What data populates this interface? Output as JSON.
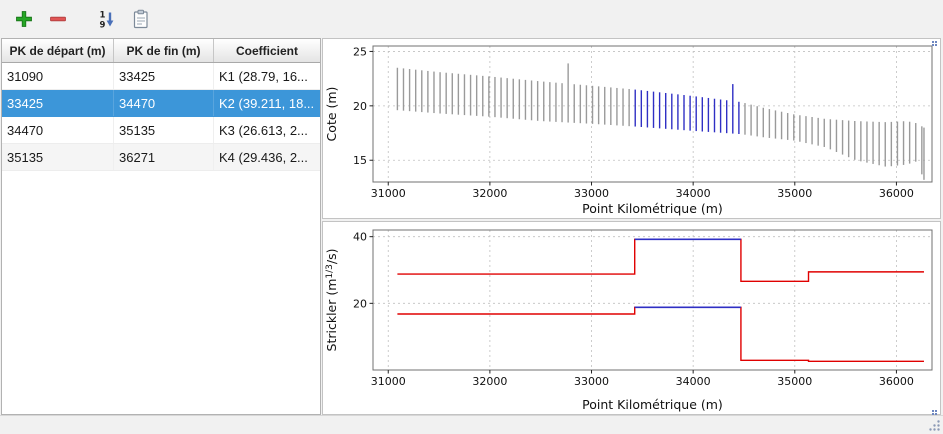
{
  "toolbar": {
    "buttons": [
      {
        "id": "add",
        "icon": "plus-icon"
      },
      {
        "id": "remove",
        "icon": "minus-icon"
      },
      {
        "id": "sort",
        "icon": "sort-numeric-icon",
        "digit_top": "1",
        "digit_bottom": "9"
      },
      {
        "id": "paste",
        "icon": "clipboard-icon"
      }
    ]
  },
  "table": {
    "columns": [
      "PK de départ (m)",
      "PK de fin (m)",
      "Coefficient"
    ],
    "rows": [
      {
        "pk_start": "31090",
        "pk_end": "33425",
        "coefficient": "K1 (28.79, 16...",
        "selected": false
      },
      {
        "pk_start": "33425",
        "pk_end": "34470",
        "coefficient": "K2 (39.211, 18...",
        "selected": true
      },
      {
        "pk_start": "34470",
        "pk_end": "35135",
        "coefficient": "K3 (26.613, 2...",
        "selected": false
      },
      {
        "pk_start": "35135",
        "pk_end": "36271",
        "coefficient": "K4 (29.436, 2...",
        "selected": false
      }
    ],
    "selected_color": "#3c96d9"
  },
  "chart_data": [
    {
      "type": "bar",
      "title": "",
      "xlabel": "Point Kilométrique (m)",
      "ylabel": "Cote (m)",
      "xlim": [
        30850,
        36350
      ],
      "ylim": [
        13,
        25.5
      ],
      "xticks": [
        31000,
        32000,
        33000,
        34000,
        35000,
        36000
      ],
      "yticks": [
        15,
        20,
        25
      ],
      "grid": true,
      "x_start": 31090,
      "x_end": 36271,
      "bar_spacing": 60,
      "highlight_range": [
        33425,
        34470
      ],
      "colors": {
        "bar": "#9a9a9a",
        "highlight": "#2f2fc4"
      },
      "sections": [
        [
          31090,
          19.6,
          23.5
        ],
        [
          31500,
          19.3,
          23.1
        ],
        [
          32000,
          19.0,
          22.7
        ],
        [
          32500,
          18.6,
          22.25
        ],
        [
          33000,
          18.35,
          21.85
        ],
        [
          33425,
          18.1,
          21.5
        ],
        [
          34000,
          17.7,
          20.9
        ],
        [
          34470,
          17.4,
          20.35
        ],
        [
          34700,
          17.1,
          19.8
        ],
        [
          35000,
          16.8,
          19.2
        ],
        [
          35300,
          16.2,
          18.8
        ],
        [
          35600,
          15.0,
          18.6
        ],
        [
          35900,
          14.4,
          18.5
        ],
        [
          36100,
          14.6,
          18.6
        ],
        [
          36200,
          14.9,
          18.4
        ],
        [
          36271,
          13.2,
          18.0
        ]
      ],
      "spikes": [
        {
          "x": 32780,
          "top": 23.9
        },
        {
          "x": 34390,
          "top": 22.0
        }
      ]
    },
    {
      "type": "line",
      "title": "",
      "xlabel": "Point Kilométrique (m)",
      "ylabel": "Strickler (m1/3/s)",
      "ylabel_parts": {
        "pre": "Strickler (m",
        "sup": "1/3",
        "post": "/s)"
      },
      "xlim": [
        30850,
        36350
      ],
      "ylim": [
        0,
        42
      ],
      "xticks": [
        31000,
        32000,
        33000,
        34000,
        35000,
        36000
      ],
      "yticks": [
        20,
        40
      ],
      "grid": true,
      "segments": [
        {
          "label": "K1",
          "pk_start": 31090,
          "pk_end": 33425,
          "strickler_major": 28.79,
          "strickler_minor": 16.8,
          "selected": false
        },
        {
          "label": "K2",
          "pk_start": 33425,
          "pk_end": 34470,
          "strickler_major": 39.211,
          "strickler_minor": 18.8,
          "selected": true
        },
        {
          "label": "K3",
          "pk_start": 34470,
          "pk_end": 35135,
          "strickler_major": 26.613,
          "strickler_minor": 2.9,
          "selected": false
        },
        {
          "label": "K4",
          "pk_start": 35135,
          "pk_end": 36271,
          "strickler_major": 29.436,
          "strickler_minor": 2.6,
          "selected": false
        }
      ],
      "colors": {
        "line": "#e00000",
        "selected": "#2f2fc4"
      }
    }
  ]
}
